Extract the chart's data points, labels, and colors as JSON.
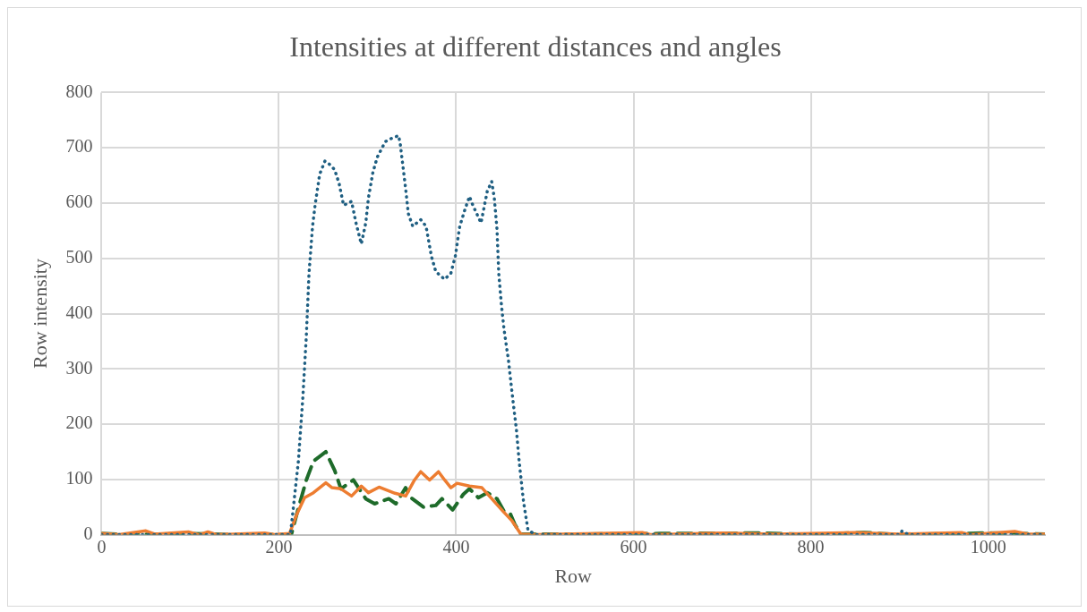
{
  "chart_data": {
    "type": "line",
    "title": "Intensities at different distances and angles",
    "xlabel": "Row",
    "ylabel": "Row intensity",
    "xlim": [
      0,
      1064
    ],
    "xticks": [
      0,
      200,
      400,
      600,
      800,
      1000
    ],
    "ylim": [
      0,
      800
    ],
    "yticks": [
      0,
      100,
      200,
      300,
      400,
      500,
      600,
      700,
      800
    ],
    "grid": true,
    "legend": false,
    "series": [
      {
        "color": "#1f5f82",
        "line_style": "dotted",
        "x": [
          0,
          50,
          100,
          150,
          200,
          213,
          222,
          227,
          231,
          234,
          238,
          241,
          246,
          252,
          258,
          263,
          268,
          273,
          282,
          287,
          293,
          298,
          301,
          306,
          311,
          320,
          327,
          335,
          337,
          340,
          343,
          346,
          351,
          360,
          366,
          372,
          377,
          387,
          394,
          399,
          404,
          410,
          415,
          418,
          428,
          435,
          440,
          443,
          446,
          448,
          451,
          454,
          459,
          463,
          468,
          471,
          476,
          481,
          490,
          600,
          700,
          800,
          900,
          903,
          910,
          1000,
          1064
        ],
        "values": [
          0,
          0,
          0,
          0,
          0,
          0,
          133,
          247,
          360,
          473,
          558,
          598,
          652,
          676,
          669,
          660,
          635,
          596,
          603,
          564,
          526,
          564,
          609,
          655,
          683,
          711,
          717,
          722,
          706,
          666,
          626,
          581,
          558,
          570,
          558,
          504,
          476,
          462,
          473,
          504,
          558,
          589,
          612,
          599,
          564,
          621,
          639,
          609,
          553,
          473,
          416,
          371,
          315,
          257,
          189,
          133,
          59,
          8,
          0,
          0,
          0,
          0,
          0,
          7,
          0,
          0,
          0
        ]
      },
      {
        "color": "#ed7d31",
        "line_style": "solid",
        "x": [
          0,
          20,
          50,
          60,
          98,
          110,
          120,
          130,
          184,
          195,
          212,
          220,
          229,
          239,
          253,
          260,
          270,
          282,
          293,
          301,
          313,
          331,
          343,
          353,
          360,
          370,
          380,
          387,
          394,
          401,
          415,
          429,
          439,
          453,
          463,
          473,
          490,
          560,
          610,
          620,
          700,
          760,
          850,
          900,
          970,
          980,
          1030,
          1045,
          1064
        ],
        "values": [
          2,
          0,
          7,
          1,
          5,
          0,
          5,
          0,
          3,
          0,
          2,
          36,
          67,
          76,
          94,
          85,
          83,
          70,
          88,
          76,
          86,
          75,
          70,
          99,
          114,
          99,
          114,
          99,
          85,
          93,
          88,
          85,
          67,
          42,
          25,
          1,
          0,
          2,
          4,
          0,
          3,
          1,
          4,
          1,
          4,
          0,
          6,
          1,
          1
        ]
      },
      {
        "color": "#1e6b2a",
        "line_style": "dashed",
        "x": [
          0,
          30,
          100,
          150,
          214,
          222,
          231,
          239,
          253,
          263,
          270,
          284,
          298,
          308,
          324,
          332,
          343,
          349,
          363,
          377,
          384,
          396,
          408,
          415,
          425,
          435,
          446,
          454,
          461,
          466,
          473,
          540,
          630,
          740,
          800,
          860,
          900,
          1000,
          1064
        ],
        "values": [
          2,
          0,
          2,
          0,
          0,
          48,
          99,
          133,
          150,
          116,
          83,
          99,
          65,
          56,
          65,
          56,
          85,
          67,
          50,
          53,
          65,
          45,
          73,
          83,
          67,
          76,
          65,
          42,
          38,
          19,
          1,
          1,
          2,
          3,
          0,
          4,
          0,
          3,
          1
        ]
      }
    ]
  }
}
